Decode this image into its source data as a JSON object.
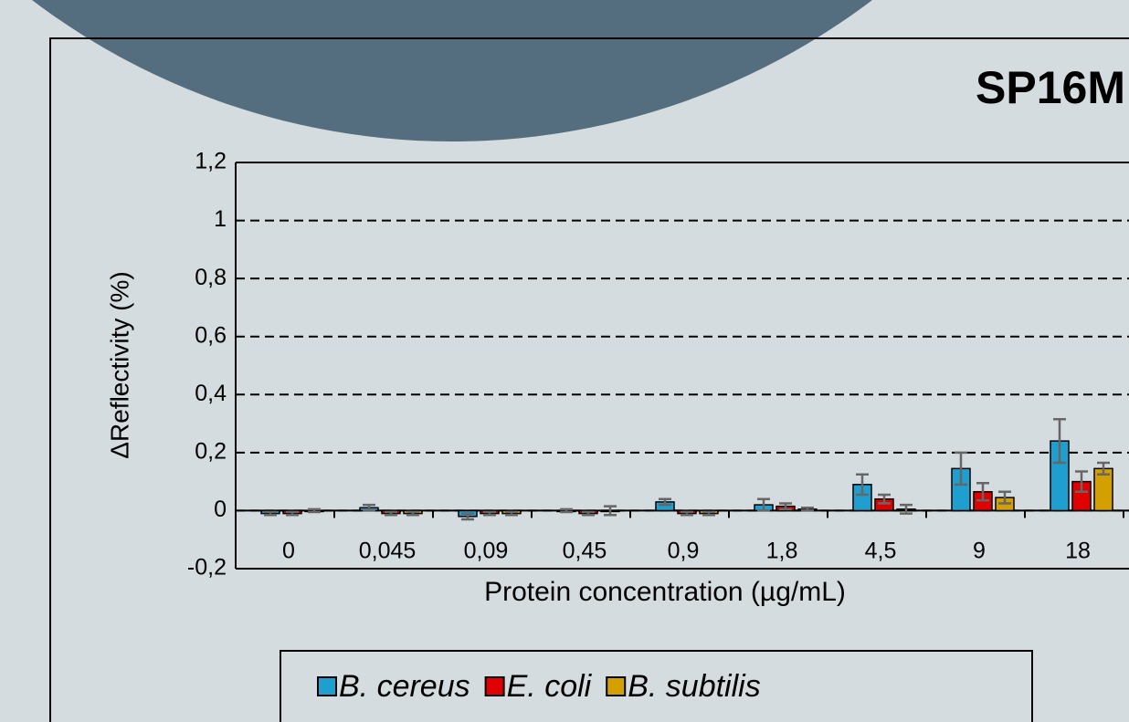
{
  "chart_data": {
    "type": "bar",
    "title": "SP16M",
    "y_label": "ΔReflectivity (%)",
    "x_label": "Protein concentration (µg/mL)",
    "categories": [
      "0",
      "0,045",
      "0,09",
      "0,45",
      "0,9",
      "1,8",
      "4,5",
      "9",
      "18"
    ],
    "series": [
      {
        "name": "B. cereus",
        "color": "#1f9fd0",
        "values": [
          -0.01,
          0.01,
          -0.02,
          0.0,
          0.03,
          0.02,
          0.09,
          0.145,
          0.24
        ],
        "errors": [
          0.005,
          0.01,
          0.01,
          0.005,
          0.01,
          0.02,
          0.035,
          0.055,
          0.075
        ]
      },
      {
        "name": "E. coli",
        "color": "#e00000",
        "values": [
          -0.01,
          -0.01,
          -0.01,
          -0.01,
          -0.01,
          0.015,
          0.04,
          0.065,
          0.1
        ],
        "errors": [
          0.005,
          0.005,
          0.005,
          0.005,
          0.005,
          0.01,
          0.015,
          0.03,
          0.035
        ]
      },
      {
        "name": "B. subtilis",
        "color": "#d4a000",
        "values": [
          0.0,
          -0.01,
          -0.01,
          0.0,
          -0.01,
          0.005,
          0.005,
          0.045,
          0.145
        ],
        "errors": [
          0.005,
          0.005,
          0.005,
          0.015,
          0.005,
          0.005,
          0.015,
          0.02,
          0.02
        ]
      }
    ],
    "ylim": [
      -0.2,
      1.2
    ],
    "yticks": [
      {
        "value": -0.2,
        "label": "-0,2"
      },
      0,
      {
        "value": 0.2,
        "label": "0,2"
      },
      {
        "value": 0.4,
        "label": "0,4"
      },
      {
        "value": 0.6,
        "label": "0,6"
      },
      {
        "value": 0.8,
        "label": "0,8"
      },
      1,
      {
        "value": 1.2,
        "label": "1,2"
      }
    ],
    "grid": true,
    "legend": "bottom"
  }
}
